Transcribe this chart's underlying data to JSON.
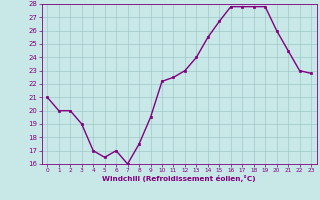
{
  "x": [
    0,
    1,
    2,
    3,
    4,
    5,
    6,
    7,
    8,
    9,
    10,
    11,
    12,
    13,
    14,
    15,
    16,
    17,
    18,
    19,
    20,
    21,
    22,
    23
  ],
  "y": [
    21,
    20,
    20,
    19,
    17,
    16.5,
    17,
    16,
    17.5,
    19.5,
    22.2,
    22.5,
    23,
    24,
    25.5,
    26.7,
    27.8,
    27.8,
    27.8,
    27.8,
    26,
    24.5,
    23,
    22.8
  ],
  "line_color": "#800080",
  "marker_color": "#800080",
  "bg_color": "#c8e8e8",
  "grid_color": "#a0c8c8",
  "xlabel": "Windchill (Refroidissement éolien,°C)",
  "ylim": [
    16,
    28
  ],
  "xlim": [
    -0.5,
    23.5
  ],
  "yticks": [
    16,
    17,
    18,
    19,
    20,
    21,
    22,
    23,
    24,
    25,
    26,
    27,
    28
  ],
  "xticks": [
    0,
    1,
    2,
    3,
    4,
    5,
    6,
    7,
    8,
    9,
    10,
    11,
    12,
    13,
    14,
    15,
    16,
    17,
    18,
    19,
    20,
    21,
    22,
    23
  ]
}
